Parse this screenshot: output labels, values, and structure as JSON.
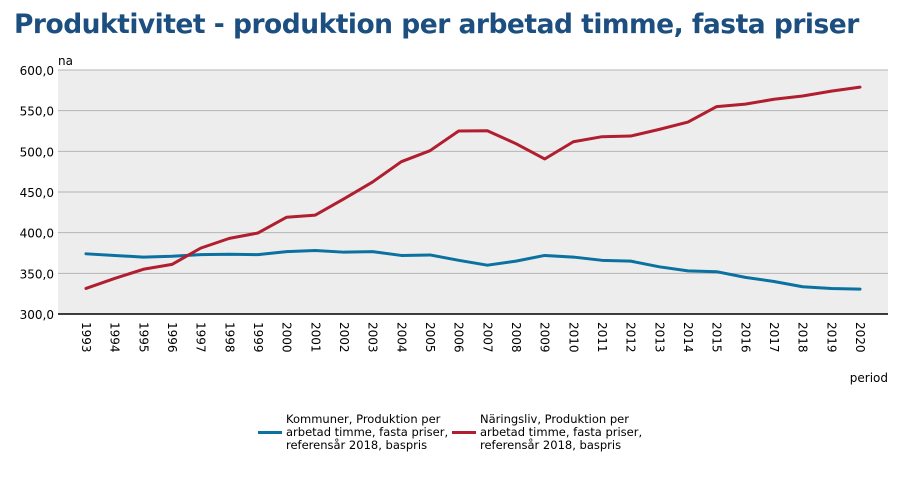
{
  "title": "Produktivitet - produktion per arbetad timme, fasta priser",
  "chart_data": {
    "type": "line",
    "title": "Produktivitet - produktion per arbetad timme, fasta priser",
    "ylabel": "na",
    "xlabel": "period",
    "ylim": [
      300,
      600
    ],
    "yticks": [
      "300,0",
      "350,0",
      "400,0",
      "450,0",
      "500,0",
      "550,0",
      "600,0"
    ],
    "grid": true,
    "legend": "bottom",
    "x": [
      "1993",
      "1994",
      "1995",
      "1996",
      "1997",
      "1998",
      "1999",
      "2000",
      "2001",
      "2002",
      "2003",
      "2004",
      "2005",
      "2006",
      "2007",
      "2008",
      "2009",
      "2010",
      "2011",
      "2012",
      "2013",
      "2014",
      "2015",
      "2016",
      "2017",
      "2018",
      "2019",
      "2020"
    ],
    "series": [
      {
        "name": "Kommuner, Produktion per arbetad timme, fasta priser, referensår 2018, baspris",
        "color": "#0a71a0",
        "values": [
          374,
          372,
          370,
          371,
          373,
          373.5,
          373,
          376.7,
          378,
          376,
          376.7,
          372,
          372.6,
          366,
          360,
          365,
          372,
          370,
          366,
          365,
          358,
          353,
          352,
          345,
          340,
          333.5,
          331.4,
          330.6
        ]
      },
      {
        "name": "Näringsliv, Produktion per arbetad timme, fasta priser, referensår 2018, baspris",
        "color": "#b01e2f",
        "values": [
          331.4,
          343.7,
          355,
          361,
          381,
          393,
          399.6,
          419,
          421.6,
          441.6,
          462.4,
          487.3,
          500.8,
          525,
          525.3,
          509.4,
          490.6,
          511.8,
          518,
          518.8,
          527,
          536,
          555,
          558,
          564,
          568,
          574,
          579
        ]
      }
    ]
  }
}
